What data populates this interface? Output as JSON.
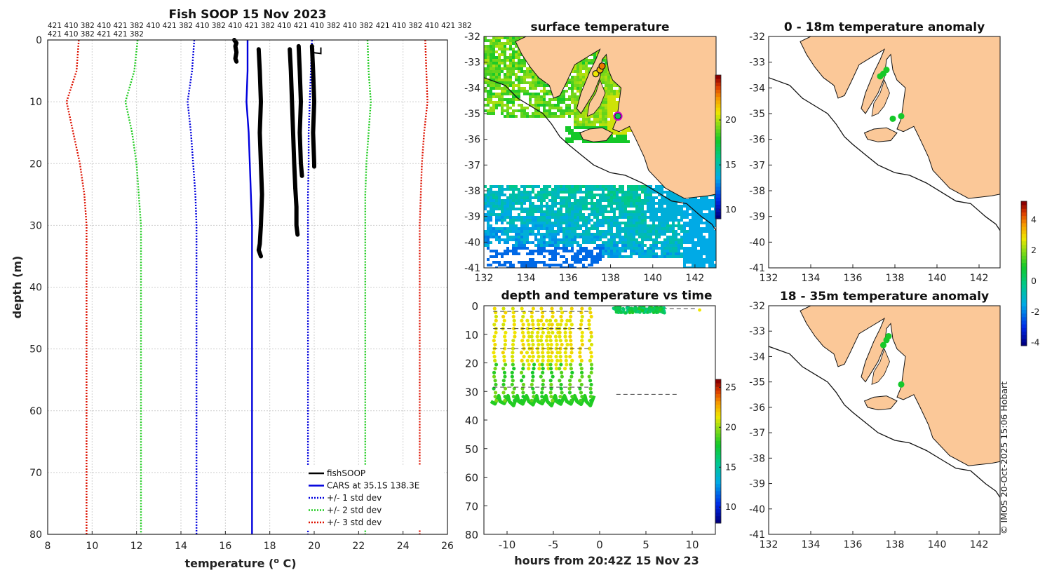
{
  "chart_data": [
    {
      "type": "line",
      "id": "profile",
      "title": "Fish SOOP 15 Nov 2023",
      "xlabel": "temperature (",
      "xlabel_sup": "o",
      "xlabel_end": " C)",
      "ylabel": "depth (m)",
      "xlim": [
        8,
        26
      ],
      "ylim": [
        80,
        0
      ],
      "xticks": [
        8,
        10,
        12,
        14,
        16,
        18,
        20,
        22,
        24,
        26
      ],
      "yticks": [
        0,
        10,
        20,
        30,
        40,
        50,
        60,
        70,
        80
      ],
      "header_line1": "421 410 382 410 421 382 410 421 382 410 382 410 421 382 410 421 410 382 410 382 421 410 382 410 421 382",
      "header_line2": "421 410 382 421 421 382",
      "depth": [
        0,
        5,
        10,
        15,
        20,
        25,
        30,
        40,
        50,
        60,
        70,
        80
      ],
      "series": [
        {
          "name": "CARS at 35.1S 138.3E",
          "style": "solid",
          "color": "#0000dd",
          "values": [
            17.0,
            17.0,
            16.95,
            17.05,
            17.1,
            17.15,
            17.2,
            17.2,
            17.2,
            17.2,
            17.2,
            17.2
          ]
        },
        {
          "name": "+/- 1 std dev lower",
          "style": "dotted",
          "color": "#0000dd",
          "values": [
            14.6,
            14.5,
            14.3,
            14.45,
            14.55,
            14.65,
            14.7,
            14.7,
            14.7,
            14.7,
            14.7,
            14.7
          ]
        },
        {
          "name": "+/- 1 std dev upper",
          "style": "dotted",
          "color": "#0000dd",
          "values": [
            19.9,
            19.85,
            19.8,
            19.75,
            19.75,
            19.72,
            19.72,
            19.72,
            19.72,
            19.72,
            19.72,
            19.72
          ]
        },
        {
          "name": "+/- 2 std dev lower",
          "style": "dotted",
          "color": "#22cc22",
          "values": [
            12.05,
            11.9,
            11.5,
            11.8,
            12.0,
            12.1,
            12.2,
            12.2,
            12.2,
            12.2,
            12.2,
            12.2
          ]
        },
        {
          "name": "+/- 2 std dev upper",
          "style": "dotted",
          "color": "#22cc22",
          "values": [
            22.4,
            22.45,
            22.55,
            22.45,
            22.35,
            22.3,
            22.3,
            22.3,
            22.3,
            22.3,
            22.3,
            22.3
          ]
        },
        {
          "name": "+/- 3 std dev lower",
          "style": "dotted",
          "color": "#dd1100",
          "values": [
            9.4,
            9.3,
            8.85,
            9.15,
            9.45,
            9.65,
            9.75,
            9.75,
            9.75,
            9.75,
            9.75,
            9.75
          ]
        },
        {
          "name": "+/- 3 std dev upper",
          "style": "dotted",
          "color": "#dd1100",
          "values": [
            25.0,
            25.05,
            25.1,
            24.95,
            24.85,
            24.8,
            24.75,
            24.75,
            24.75,
            24.75,
            24.75,
            24.75
          ]
        }
      ],
      "fishsoop_casts": [
        {
          "depth": [
            0,
            0.5,
            1,
            2,
            3,
            3.5
          ],
          "temp": [
            16.4,
            16.5,
            16.45,
            16.5,
            16.45,
            16.5
          ]
        },
        {
          "depth": [
            1.5,
            5,
            10,
            15,
            20,
            25,
            30,
            33,
            34,
            35
          ],
          "temp": [
            17.5,
            17.55,
            17.6,
            17.55,
            17.6,
            17.65,
            17.6,
            17.55,
            17.5,
            17.6
          ]
        },
        {
          "depth": [
            1.5,
            5,
            10,
            15,
            20,
            24
          ],
          "temp": [
            18.9,
            18.95,
            19.0,
            19.05,
            19.1,
            19.15
          ]
        },
        {
          "depth": [
            24,
            27,
            30,
            31.5
          ],
          "temp": [
            19.15,
            19.2,
            19.2,
            19.25
          ]
        },
        {
          "depth": [
            1,
            5,
            10,
            15,
            20,
            22
          ],
          "temp": [
            19.3,
            19.35,
            19.4,
            19.35,
            19.4,
            19.45
          ]
        },
        {
          "depth": [
            1,
            5,
            10,
            15,
            20,
            20.5
          ],
          "temp": [
            19.9,
            19.95,
            20.0,
            19.95,
            20.0,
            20.0
          ]
        }
      ],
      "legend": {
        "position": "bottom-right",
        "entries": [
          {
            "label": "fishSOOP",
            "color": "#000000",
            "style": "solid"
          },
          {
            "label": "CARS at 35.1S 138.3E",
            "color": "#0000dd",
            "style": "solid"
          },
          {
            "label": "+/- 1 std dev",
            "color": "#0000dd",
            "style": "dotted"
          },
          {
            "label": "+/- 2 std dev",
            "color": "#22cc22",
            "style": "dotted"
          },
          {
            "label": "+/- 3 std dev",
            "color": "#dd1100",
            "style": "dotted"
          }
        ]
      }
    },
    {
      "type": "heatmap",
      "id": "surface",
      "title": "surface temperature",
      "xlim": [
        132,
        143
      ],
      "ylim": [
        -41,
        -32
      ],
      "xticks": [
        132,
        134,
        136,
        138,
        140,
        142
      ],
      "yticks": [
        -32,
        -33,
        -34,
        -35,
        -36,
        -37,
        -38,
        -39,
        -40,
        -41
      ],
      "colorbar": {
        "min": 9,
        "max": 25,
        "ticks": [
          10,
          15,
          20
        ]
      },
      "vessel_points": [
        {
          "lon": 137.3,
          "lat": -33.45,
          "temp": 21
        },
        {
          "lon": 137.5,
          "lat": -33.3,
          "temp": 22
        },
        {
          "lon": 137.6,
          "lat": -33.15,
          "temp": 23
        },
        {
          "lon": 138.35,
          "lat": -35.1,
          "temp": 17
        }
      ]
    },
    {
      "type": "scatter",
      "id": "time",
      "title": "depth and temperature vs time",
      "xlabel": "hours from 20:42Z 15 Nov 23",
      "xlim": [
        -12.5,
        12.5
      ],
      "ylim": [
        80,
        0
      ],
      "xticks": [
        -10,
        -5,
        0,
        5,
        10
      ],
      "yticks": [
        0,
        10,
        20,
        30,
        40,
        50,
        60,
        70,
        80
      ],
      "colorbar": {
        "min": 8,
        "max": 26,
        "ticks": [
          10,
          15,
          20,
          25
        ]
      },
      "cast_times": [
        -11.3,
        -10.3,
        -9.3,
        -8.3,
        -7.2,
        -6.2,
        -5.2,
        -4.2,
        -3.1,
        -2.0,
        -1.0
      ],
      "cast_max_depth": 34,
      "ref_lines": [
        {
          "x": [
            -11.5,
            -1.2
          ],
          "depth": 2
        },
        {
          "x": [
            -11.5,
            -1.2
          ],
          "depth": 8
        },
        {
          "x": [
            -11.5,
            -1.2
          ],
          "depth": 15
        },
        {
          "x": [
            -11.5,
            -1.2
          ],
          "depth": 28.5
        },
        {
          "x": [
            1.8,
            8.5
          ],
          "depth": 31
        },
        {
          "x": [
            1.5,
            10.5
          ],
          "depth": 1
        }
      ],
      "surface_points": {
        "x_range": [
          1.5,
          7.0
        ],
        "depth_range": [
          0.5,
          2.5
        ],
        "temp": 17
      }
    },
    {
      "type": "scatter",
      "id": "anom1",
      "title": "0 - 18m temperature anomaly",
      "xlim": [
        132,
        143
      ],
      "ylim": [
        -41,
        -32
      ],
      "xticks": [
        132,
        134,
        136,
        138,
        140,
        142
      ],
      "yticks": [
        -32,
        -33,
        -34,
        -35,
        -36,
        -37,
        -38,
        -39,
        -40,
        -41
      ],
      "points": [
        {
          "lon": 137.3,
          "lat": -33.55,
          "value": 0.2
        },
        {
          "lon": 137.45,
          "lat": -33.45,
          "value": 0.1
        },
        {
          "lon": 137.6,
          "lat": -33.3,
          "value": 0.3
        },
        {
          "lon": 137.9,
          "lat": -35.2,
          "value": 0.0
        },
        {
          "lon": 138.3,
          "lat": -35.1,
          "value": -0.1
        }
      ]
    },
    {
      "type": "scatter",
      "id": "anom2",
      "title": "18 - 35m temperature anomaly",
      "xlim": [
        132,
        143
      ],
      "ylim": [
        -41,
        -32
      ],
      "xticks": [
        132,
        134,
        136,
        138,
        140,
        142
      ],
      "yticks": [
        -32,
        -33,
        -34,
        -35,
        -36,
        -37,
        -38,
        -39,
        -40,
        -41
      ],
      "points": [
        {
          "lon": 137.45,
          "lat": -33.55,
          "value": 0.2
        },
        {
          "lon": 137.6,
          "lat": -33.35,
          "value": 0.1
        },
        {
          "lon": 137.7,
          "lat": -33.2,
          "value": 0.3
        },
        {
          "lon": 138.3,
          "lat": -35.1,
          "value": -0.1
        }
      ],
      "colorbar": {
        "min": -4.2,
        "max": 5.2,
        "ticks": [
          4,
          2,
          0,
          -2,
          -4
        ]
      }
    }
  ],
  "credit": "© IMOS 20-Oct-2025 15:06 Hobart",
  "colors": {
    "land": "#fbc898",
    "ink": "#111111"
  }
}
